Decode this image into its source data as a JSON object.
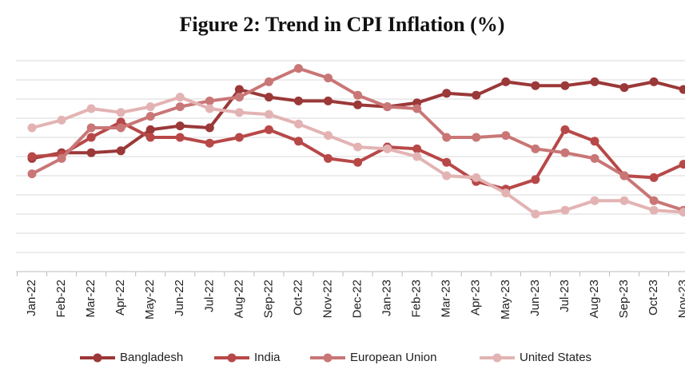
{
  "chart_data": {
    "type": "line",
    "title": "Figure 2: Trend in CPI Inflation (%)",
    "categories": [
      "Jan-22",
      "Feb-22",
      "Mar-22",
      "Apr-22",
      "May-22",
      "Jun-22",
      "Jul-22",
      "Aug-22",
      "Sep-22",
      "Oct-22",
      "Nov-22",
      "Dec-22",
      "Jan-23",
      "Feb-23",
      "Mar-23",
      "Apr-23",
      "May-23",
      "Jun-23",
      "Jul-23",
      "Aug-23",
      "Sep-23",
      "Oct-23",
      "Nov-23"
    ],
    "series": [
      {
        "name": "Bangladesh",
        "color": "#9b3838",
        "values": [
          5.9,
          6.2,
          6.2,
          6.3,
          7.4,
          7.6,
          7.5,
          9.5,
          9.1,
          8.9,
          8.9,
          8.7,
          8.6,
          8.8,
          9.3,
          9.2,
          9.9,
          9.7,
          9.7,
          9.9,
          9.6,
          9.9,
          9.5
        ]
      },
      {
        "name": "India",
        "color": "#b84848",
        "values": [
          6.0,
          6.1,
          7.0,
          7.8,
          7.0,
          7.0,
          6.7,
          7.0,
          7.4,
          6.8,
          5.9,
          5.7,
          6.5,
          6.4,
          5.7,
          4.7,
          4.3,
          4.8,
          7.4,
          6.8,
          5.0,
          4.9,
          5.6
        ]
      },
      {
        "name": "European Union",
        "color": "#c97676",
        "values": [
          5.1,
          5.9,
          7.5,
          7.5,
          8.1,
          8.6,
          8.9,
          9.1,
          9.9,
          10.6,
          10.1,
          9.2,
          8.6,
          8.5,
          7.0,
          7.0,
          7.1,
          6.4,
          6.2,
          5.9,
          5.0,
          3.7,
          3.2
        ]
      },
      {
        "name": "United States",
        "color": "#e3b3b3",
        "values": [
          7.5,
          7.9,
          8.5,
          8.3,
          8.6,
          9.1,
          8.5,
          8.3,
          8.2,
          7.7,
          7.1,
          6.5,
          6.4,
          6.0,
          5.0,
          4.9,
          4.1,
          3.0,
          3.2,
          3.7,
          3.7,
          3.2,
          3.1
        ]
      }
    ],
    "ylim": [
      0,
      11
    ],
    "yticks": [
      0,
      1,
      2,
      3,
      4,
      5,
      6,
      7,
      8,
      9,
      10,
      11
    ],
    "grid": true
  }
}
